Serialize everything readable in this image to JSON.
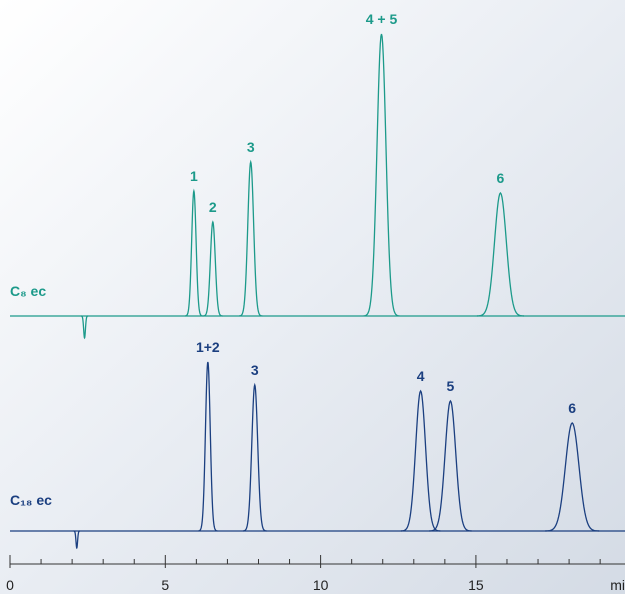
{
  "chart_data": [
    {
      "type": "chromatogram",
      "xlim": [
        0,
        19.8
      ],
      "ylim": [
        0,
        300
      ],
      "series": [
        {
          "name": "C₈ ec",
          "color": "#1c9a8a",
          "x": [
            2.4,
            5.92,
            6.53,
            7.75,
            11.96,
            15.79
          ],
          "values": [
            -22,
            125,
            94,
            154,
            282,
            123
          ],
          "labels": [
            null,
            "1",
            "2",
            "3",
            "4 + 5",
            "6"
          ]
        }
      ]
    },
    {
      "type": "chromatogram",
      "xlim": [
        0,
        19.8
      ],
      "ylim": [
        0,
        300
      ],
      "series": [
        {
          "name": "C₁₈ ec",
          "color": "#1b3f80",
          "x": [
            2.15,
            6.37,
            7.88,
            13.22,
            14.18,
            18.1
          ],
          "values": [
            -17,
            169,
            146,
            140,
            130,
            108
          ],
          "labels": [
            null,
            "1+2",
            "3",
            "4",
            "5",
            "6"
          ]
        }
      ],
      "xticks": [
        0,
        5,
        10,
        15
      ],
      "xminor_ticks": [
        1,
        2,
        3,
        4,
        6,
        7,
        8,
        9,
        11,
        12,
        13,
        14,
        16,
        17,
        18,
        19
      ],
      "x_label": "mi"
    }
  ]
}
